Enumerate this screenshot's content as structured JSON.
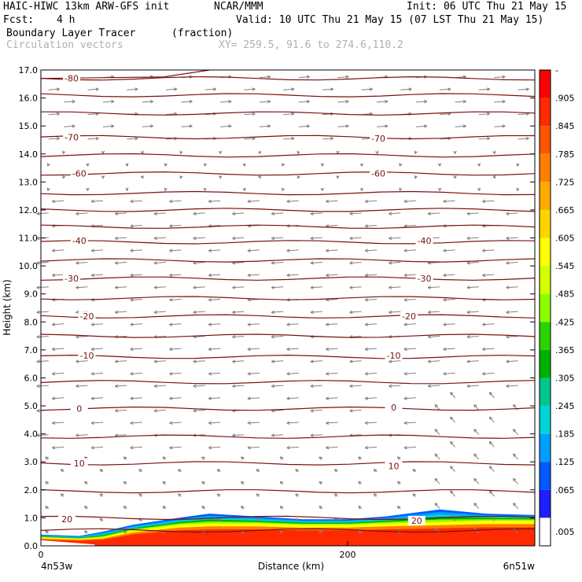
{
  "header": {
    "model": "HAIC-HIWC 13km ARW-GFS init",
    "org": "NCAR/MMM",
    "init": "Init: 06 UTC Thu 21 May 15",
    "fcst_label": "Fcst:",
    "fcst_value": "4 h",
    "valid": "Valid: 10 UTC Thu 21 May 15 (07 LST Thu 21 May 15)",
    "field_name": "Boundary Layer Tracer",
    "field_units": "(fraction)",
    "vector_name": "Circulation vectors",
    "xy": "XY= 259.5, 91.6 to 274.6,110.2"
  },
  "colors": {
    "contour": "#7a1010",
    "vector": "#808080",
    "frame": "#000000"
  },
  "chart_data": {
    "type": "heatmap",
    "ylabel": "Height (km)",
    "xlabel": "Distance (km)",
    "ylim": [
      0,
      17
    ],
    "xlim": [
      0,
      322
    ],
    "y_ticks": [
      "0.0",
      "1.0",
      "2.0",
      "3.0",
      "4.0",
      "5.0",
      "6.0",
      "7.0",
      "8.0",
      "9.0",
      "10.0",
      "11.0",
      "12.0",
      "13.0",
      "14.0",
      "15.0",
      "16.0",
      "17.0"
    ],
    "x_ticks": [
      {
        "value": 0,
        "label": "0"
      },
      {
        "value": 200,
        "label": "200"
      }
    ],
    "x_end_labels": {
      "left": "4n53w",
      "right": "6n51w"
    },
    "colorbar": {
      "labels": [
        "-",
        ".905",
        ".845",
        ".785",
        ".725",
        ".665",
        ".605",
        ".545",
        ".485",
        ".425",
        ".365",
        ".305",
        ".245",
        ".185",
        ".125",
        ".065",
        ".005"
      ],
      "colors": [
        "#ff0000",
        "#ff2a00",
        "#ff5500",
        "#ff7f00",
        "#ffaa00",
        "#ffd400",
        "#ffff00",
        "#d4ff00",
        "#8cff00",
        "#2ad400",
        "#00b000",
        "#00c88c",
        "#00d4d4",
        "#00a0ff",
        "#005aff",
        "#1e1eff",
        "#ffffff"
      ]
    },
    "contour_labels": [
      {
        "text": "-80",
        "x": 20,
        "y": 16.7
      },
      {
        "text": "-70",
        "x": 20,
        "y": 14.6
      },
      {
        "text": "-70",
        "x": 220,
        "y": 14.55
      },
      {
        "text": "-60",
        "x": 25,
        "y": 13.3
      },
      {
        "text": "-60",
        "x": 220,
        "y": 13.3
      },
      {
        "text": "-40",
        "x": 25,
        "y": 10.9
      },
      {
        "text": "-40",
        "x": 250,
        "y": 10.9
      },
      {
        "text": "-30",
        "x": 20,
        "y": 9.55
      },
      {
        "text": "-30",
        "x": 250,
        "y": 9.55
      },
      {
        "text": "-20",
        "x": 30,
        "y": 8.2
      },
      {
        "text": "-20",
        "x": 240,
        "y": 8.2
      },
      {
        "text": "-10",
        "x": 30,
        "y": 6.8
      },
      {
        "text": "-10",
        "x": 230,
        "y": 6.8
      },
      {
        "text": "0",
        "x": 25,
        "y": 4.9
      },
      {
        "text": "0",
        "x": 230,
        "y": 4.95
      },
      {
        "text": "10",
        "x": 25,
        "y": 2.95
      },
      {
        "text": "10",
        "x": 230,
        "y": 2.85
      },
      {
        "text": "20",
        "x": 17,
        "y": 0.95
      },
      {
        "text": "20",
        "x": 245,
        "y": 0.9
      }
    ],
    "isotherm_heights_km": [
      0.55,
      1.0,
      1.95,
      2.95,
      3.9,
      4.9,
      5.85,
      6.75,
      7.5,
      8.2,
      8.85,
      9.55,
      10.2,
      10.85,
      11.4,
      12.0,
      12.6,
      13.3,
      13.95,
      14.6,
      15.45,
      16.1,
      16.7
    ],
    "tracer_top_km": [
      {
        "x": 0,
        "top": 0.4,
        "inner": 0.3
      },
      {
        "x": 25,
        "top": 0.35,
        "inner": 0.25
      },
      {
        "x": 40,
        "top": 0.5,
        "inner": 0.3
      },
      {
        "x": 60,
        "top": 0.75,
        "inner": 0.55
      },
      {
        "x": 90,
        "top": 1.0,
        "inner": 0.75
      },
      {
        "x": 110,
        "top": 1.15,
        "inner": 0.8
      },
      {
        "x": 140,
        "top": 1.05,
        "inner": 0.8
      },
      {
        "x": 170,
        "top": 0.95,
        "inner": 0.75
      },
      {
        "x": 200,
        "top": 0.95,
        "inner": 0.75
      },
      {
        "x": 225,
        "top": 1.05,
        "inner": 0.8
      },
      {
        "x": 260,
        "top": 1.3,
        "inner": 0.85
      },
      {
        "x": 290,
        "top": 1.15,
        "inner": 0.9
      },
      {
        "x": 322,
        "top": 1.1,
        "inner": 0.9
      }
    ]
  }
}
